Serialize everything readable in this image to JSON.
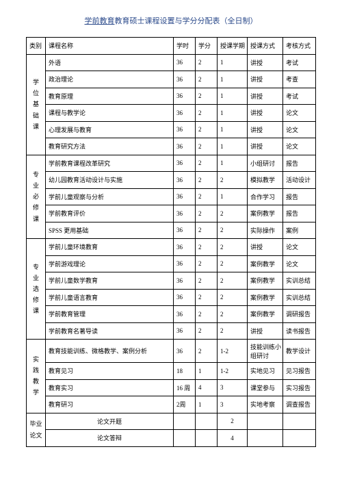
{
  "title_underlined": "学前教育",
  "title_rest": "教育硕士课程设置与学分分配表（全日制）",
  "columns": [
    "类别",
    "课程名称",
    "学时",
    "学分",
    "授课学期",
    "授课方式",
    "考核方式"
  ],
  "cat1": {
    "label": "学位基础课",
    "chars": [
      "学",
      "位",
      "基",
      "础",
      "课"
    ],
    "rowspan": 6
  },
  "cat2": {
    "label": "专业必修课",
    "chars": [
      "专",
      "业",
      "必",
      "修",
      "课"
    ],
    "rowspan": 5
  },
  "cat3": {
    "label": "专业选修课",
    "chars": [
      "专",
      "业",
      "选",
      "修",
      "课"
    ],
    "rowspan": 6
  },
  "cat4": {
    "label": "实践教学",
    "chars": [
      "实",
      "践",
      "教",
      "学"
    ],
    "rowspan": 4
  },
  "cat5": {
    "label_a": "毕业",
    "label_b": "论文",
    "rowspan": 2
  },
  "rows": [
    {
      "cat": "cat1",
      "name": "外语",
      "hours": "36",
      "credit": "2",
      "term": "1",
      "method": "讲授",
      "assess": "考试"
    },
    {
      "name": "政治理论",
      "hours": "36",
      "credit": "2",
      "term": "1",
      "method": "讲授",
      "assess": "考查"
    },
    {
      "name": "教育原理",
      "hours": "36",
      "credit": "2",
      "term": "1",
      "method": "讲授",
      "assess": "考试"
    },
    {
      "name": "课程与教学论",
      "hours": "36",
      "credit": "2",
      "term": "1",
      "method": "讲授",
      "assess": "论文"
    },
    {
      "name": "心理发展与教育",
      "hours": "36",
      "credit": "2",
      "term": "1",
      "method": "讲授",
      "assess": "论文"
    },
    {
      "name": "教育研究方法",
      "hours": "36",
      "credit": "2",
      "term": "1",
      "method": "讲授",
      "assess": "论文"
    },
    {
      "cat": "cat2",
      "name": "学前教育课程改革研究",
      "hours": "36",
      "credit": "2",
      "term": "1",
      "method": "小组研讨",
      "assess": "报告"
    },
    {
      "name": "幼儿园教育活动设计与实施",
      "hours": "36",
      "credit": "2",
      "term": "2",
      "method": "模拟教学",
      "assess": "活动设计"
    },
    {
      "name": "学前儿童观察与分析",
      "hours": "36",
      "credit": "2",
      "term": "1",
      "method": "合作学习",
      "assess": "报告"
    },
    {
      "name": "学前教育评价",
      "hours": "36",
      "credit": "2",
      "term": "2",
      "method": "案例教学",
      "assess": "报告"
    },
    {
      "name": "SPSS 更用基础",
      "hours": "36",
      "credit": "2",
      "term": "2",
      "method": "实际操作",
      "assess": "案例"
    },
    {
      "cat": "cat3",
      "name": "学前儿童环境教育",
      "hours": "36",
      "credit": "2",
      "term": "2",
      "method": "讲授",
      "assess": "论文"
    },
    {
      "name": "学前游戏理论",
      "hours": "36",
      "credit": "2",
      "term": "2",
      "method": "案例教学",
      "assess": "论文"
    },
    {
      "name": "学前儿童数学教育",
      "hours": "36",
      "credit": "2",
      "term": "2",
      "method": "案例教学",
      "assess": "实训总结"
    },
    {
      "name": "学前儿童语言教育",
      "hours": "36",
      "credit": "2",
      "term": "2",
      "method": "案例教学",
      "assess": "实训总结"
    },
    {
      "name": "学前教育管理",
      "hours": "36",
      "credit": "2",
      "term": "2",
      "method": "案例教学",
      "assess": "调研报告"
    },
    {
      "name": "学前教育名著导读",
      "hours": "36",
      "credit": "2",
      "term": "2",
      "method": "讲授",
      "assess": "读书报告"
    },
    {
      "cat": "cat4",
      "name": "教育技能训练、微格教学、案例分析",
      "hours": "36",
      "credit": "2",
      "term": "1-2",
      "method": "技能训练小组研讨",
      "assess": "教学设计",
      "tall": true
    },
    {
      "name": "教育见习",
      "hours": "18",
      "credit": "1",
      "term": "1-2",
      "method": "实地见习",
      "assess": "见习报告"
    },
    {
      "name": "教育实习",
      "hours": "16 周",
      "credit": "4",
      "term": "3",
      "method": "课堂参与",
      "assess": "实习报告"
    },
    {
      "name": "教育研习",
      "hours": "2周",
      "credit": "1",
      "term": "3",
      "method": "实地考察",
      "assess": "调查报告"
    }
  ],
  "thesis": [
    {
      "name": "论文开题",
      "credit": "2"
    },
    {
      "name": "论文答辩",
      "credit": "4"
    }
  ],
  "colors": {
    "title": "#2b4a8b",
    "border": "#000000",
    "bg": "#ffffff",
    "text": "#000000"
  }
}
